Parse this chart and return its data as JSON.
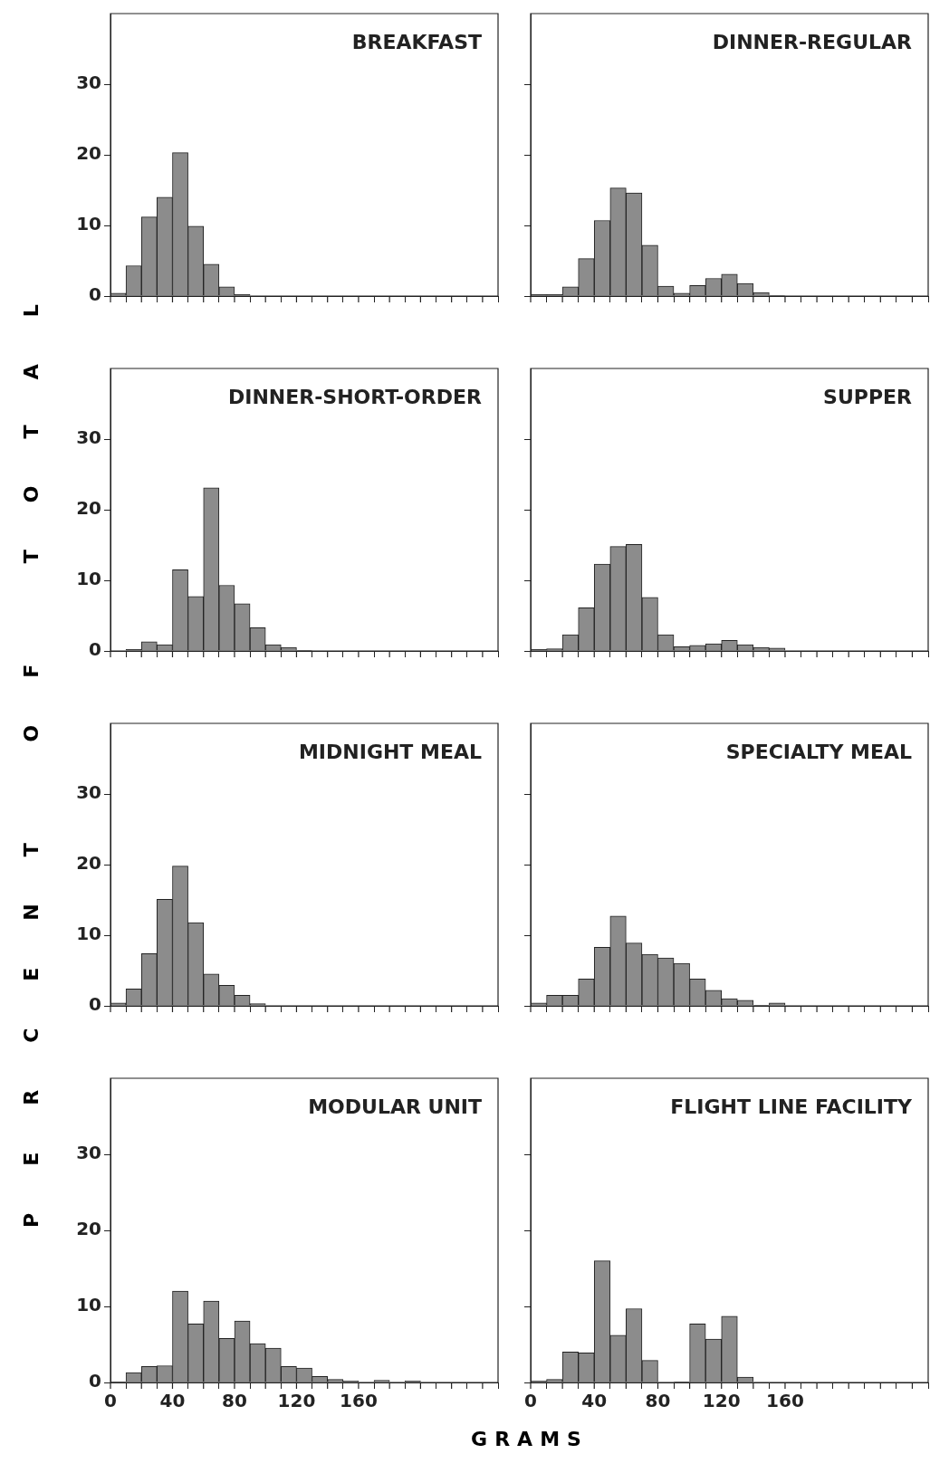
{
  "chart_data": [
    {
      "type": "histogram",
      "title": "BREAKFAST",
      "ylabel": "PERCENT OF TOTAL",
      "bins": [
        0,
        10,
        20,
        30,
        40,
        50,
        60,
        70,
        80,
        90,
        100,
        110,
        120,
        130,
        140,
        150,
        160,
        170,
        180,
        190,
        200,
        210,
        220,
        230,
        240,
        250
      ],
      "values": [
        0.4,
        4.3,
        11.2,
        14,
        20.3,
        9.9,
        4.5,
        1.3,
        0.2,
        0,
        0,
        0,
        0,
        0,
        0,
        0,
        0,
        0,
        0,
        0,
        0,
        0,
        0,
        0,
        0
      ],
      "color": "#8c8c8c",
      "xlim": [
        0,
        250
      ],
      "ylim": [
        0,
        40
      ],
      "yticks": [
        0,
        10,
        20,
        30
      ],
      "xticks": [
        {
          "value": 0,
          "label": null
        },
        {
          "value": 20,
          "label": null
        },
        {
          "value": 40,
          "label": null
        },
        {
          "value": 60,
          "label": null
        },
        {
          "value": 80,
          "label": null
        },
        {
          "value": 100,
          "label": null
        },
        {
          "value": 120,
          "label": null
        },
        {
          "value": 140,
          "label": null
        },
        {
          "value": 160,
          "label": null
        },
        {
          "value": 180,
          "label": null
        },
        {
          "value": 200,
          "label": null
        },
        {
          "value": 220,
          "label": null
        },
        {
          "value": 240,
          "label": null
        }
      ],
      "tick_labels": "y"
    },
    {
      "type": "histogram",
      "title": "DINNER-REGULAR",
      "bins": [
        0,
        10,
        20,
        30,
        40,
        50,
        60,
        70,
        80,
        90,
        100,
        110,
        120,
        130,
        140,
        150,
        160,
        170,
        180,
        190,
        200,
        210,
        220,
        230,
        240,
        250
      ],
      "values": [
        0.2,
        0.2,
        1.3,
        5.3,
        10.7,
        15.3,
        14.6,
        7.2,
        1.4,
        0.4,
        1.5,
        2.5,
        3.1,
        1.8,
        0.5,
        0.1,
        0,
        0,
        0,
        0,
        0,
        0,
        0,
        0,
        0
      ],
      "color": "#8c8c8c",
      "xlim": [
        0,
        250
      ],
      "ylim": [
        0,
        40
      ],
      "yticks": [
        0,
        10,
        20,
        30
      ],
      "xticks": [
        {
          "value": 0,
          "label": null
        },
        {
          "value": 20,
          "label": null
        },
        {
          "value": 40,
          "label": null
        },
        {
          "value": 60,
          "label": null
        },
        {
          "value": 80,
          "label": null
        },
        {
          "value": 100,
          "label": null
        },
        {
          "value": 120,
          "label": null
        },
        {
          "value": 140,
          "label": null
        },
        {
          "value": 160,
          "label": null
        },
        {
          "value": 180,
          "label": null
        },
        {
          "value": 200,
          "label": null
        },
        {
          "value": 220,
          "label": null
        },
        {
          "value": 240,
          "label": null
        }
      ],
      "tick_labels": false
    },
    {
      "type": "histogram",
      "title": "DINNER-SHORT-ORDER",
      "bins": [
        0,
        10,
        20,
        30,
        40,
        50,
        60,
        70,
        80,
        90,
        100,
        110,
        120,
        130,
        140,
        150,
        160,
        170,
        180,
        190,
        200,
        210,
        220,
        230,
        240,
        250
      ],
      "values": [
        0,
        0.2,
        1.3,
        0.9,
        11.5,
        7.7,
        23.1,
        9.3,
        6.7,
        3.3,
        0.9,
        0.5,
        0.1,
        0,
        0,
        0,
        0,
        0,
        0,
        0,
        0,
        0,
        0,
        0,
        0
      ],
      "color": "#8c8c8c",
      "xlim": [
        0,
        250
      ],
      "ylim": [
        0,
        40
      ],
      "yticks": [
        0,
        10,
        20,
        30
      ],
      "xticks": [
        {
          "value": 0,
          "label": null
        },
        {
          "value": 20,
          "label": null
        },
        {
          "value": 40,
          "label": null
        },
        {
          "value": 60,
          "label": null
        },
        {
          "value": 80,
          "label": null
        },
        {
          "value": 100,
          "label": null
        },
        {
          "value": 120,
          "label": null
        },
        {
          "value": 140,
          "label": null
        },
        {
          "value": 160,
          "label": null
        },
        {
          "value": 180,
          "label": null
        },
        {
          "value": 200,
          "label": null
        },
        {
          "value": 220,
          "label": null
        },
        {
          "value": 240,
          "label": null
        }
      ],
      "tick_labels": "y"
    },
    {
      "type": "histogram",
      "title": "SUPPER",
      "bins": [
        0,
        10,
        20,
        30,
        40,
        50,
        60,
        70,
        80,
        90,
        100,
        110,
        120,
        130,
        140,
        150,
        160,
        170,
        180,
        190,
        200,
        210,
        220,
        230,
        240,
        250
      ],
      "values": [
        0.2,
        0.3,
        2.3,
        6.1,
        12.3,
        14.8,
        15.1,
        7.6,
        2.3,
        0.6,
        0.8,
        1.0,
        1.5,
        0.9,
        0.5,
        0.4,
        0,
        0,
        0,
        0,
        0,
        0,
        0,
        0,
        0
      ],
      "color": "#8c8c8c",
      "xlim": [
        0,
        250
      ],
      "ylim": [
        0,
        40
      ],
      "yticks": [
        0,
        10,
        20,
        30
      ],
      "xticks": [
        {
          "value": 0,
          "label": null
        },
        {
          "value": 20,
          "label": null
        },
        {
          "value": 40,
          "label": null
        },
        {
          "value": 60,
          "label": null
        },
        {
          "value": 80,
          "label": null
        },
        {
          "value": 100,
          "label": null
        },
        {
          "value": 120,
          "label": null
        },
        {
          "value": 140,
          "label": null
        },
        {
          "value": 160,
          "label": null
        },
        {
          "value": 180,
          "label": null
        },
        {
          "value": 200,
          "label": null
        },
        {
          "value": 220,
          "label": null
        },
        {
          "value": 240,
          "label": null
        }
      ],
      "tick_labels": false
    },
    {
      "type": "histogram",
      "title": "MIDNIGHT MEAL",
      "bins": [
        0,
        10,
        20,
        30,
        40,
        50,
        60,
        70,
        80,
        90,
        100,
        110,
        120,
        130,
        140,
        150,
        160,
        170,
        180,
        190,
        200,
        210,
        220,
        230,
        240,
        250
      ],
      "values": [
        0.4,
        2.4,
        7.4,
        15.1,
        19.8,
        11.8,
        4.5,
        2.9,
        1.5,
        0.3,
        0,
        0,
        0,
        0,
        0,
        0,
        0,
        0,
        0,
        0,
        0,
        0,
        0,
        0,
        0
      ],
      "color": "#8c8c8c",
      "xlim": [
        0,
        250
      ],
      "ylim": [
        0,
        40
      ],
      "yticks": [
        0,
        10,
        20,
        30
      ],
      "xticks": [
        {
          "value": 0,
          "label": null
        },
        {
          "value": 20,
          "label": null
        },
        {
          "value": 40,
          "label": null
        },
        {
          "value": 60,
          "label": null
        },
        {
          "value": 80,
          "label": null
        },
        {
          "value": 100,
          "label": null
        },
        {
          "value": 120,
          "label": null
        },
        {
          "value": 140,
          "label": null
        },
        {
          "value": 160,
          "label": null
        },
        {
          "value": 180,
          "label": null
        },
        {
          "value": 200,
          "label": null
        },
        {
          "value": 220,
          "label": null
        },
        {
          "value": 240,
          "label": null
        }
      ],
      "tick_labels": "y"
    },
    {
      "type": "histogram",
      "title": "SPECIALTY MEAL",
      "bins": [
        0,
        10,
        20,
        30,
        40,
        50,
        60,
        70,
        80,
        90,
        100,
        110,
        120,
        130,
        140,
        150,
        160,
        170,
        180,
        190,
        200,
        210,
        220,
        230,
        240,
        250
      ],
      "values": [
        0.4,
        1.5,
        1.5,
        3.8,
        8.3,
        12.7,
        8.9,
        7.3,
        6.8,
        6.0,
        3.8,
        2.2,
        1.0,
        0.8,
        0.1,
        0.4,
        0,
        0,
        0,
        0,
        0,
        0,
        0,
        0,
        0
      ],
      "color": "#8c8c8c",
      "xlim": [
        0,
        250
      ],
      "ylim": [
        0,
        40
      ],
      "yticks": [
        0,
        10,
        20,
        30
      ],
      "xticks": [
        {
          "value": 0,
          "label": null
        },
        {
          "value": 20,
          "label": null
        },
        {
          "value": 40,
          "label": null
        },
        {
          "value": 60,
          "label": null
        },
        {
          "value": 80,
          "label": null
        },
        {
          "value": 100,
          "label": null
        },
        {
          "value": 120,
          "label": null
        },
        {
          "value": 140,
          "label": null
        },
        {
          "value": 160,
          "label": null
        },
        {
          "value": 180,
          "label": null
        },
        {
          "value": 200,
          "label": null
        },
        {
          "value": 220,
          "label": null
        },
        {
          "value": 240,
          "label": null
        }
      ],
      "tick_labels": false
    },
    {
      "type": "histogram",
      "title": "MODULAR UNIT",
      "xlabel": "GRAMS",
      "bins": [
        0,
        10,
        20,
        30,
        40,
        50,
        60,
        70,
        80,
        90,
        100,
        110,
        120,
        130,
        140,
        150,
        160,
        170,
        180,
        190,
        200,
        210,
        220,
        230,
        240,
        250
      ],
      "values": [
        0.1,
        1.3,
        2.1,
        2.2,
        12.0,
        7.7,
        10.7,
        5.8,
        8.1,
        5.1,
        4.5,
        2.1,
        1.9,
        0.8,
        0.4,
        0.2,
        0,
        0.3,
        0,
        0.2,
        0,
        0,
        0,
        0,
        0
      ],
      "color": "#8c8c8c",
      "xlim": [
        0,
        250
      ],
      "ylim": [
        0,
        40
      ],
      "yticks": [
        0,
        10,
        20,
        30
      ],
      "xticks": [
        {
          "value": 0,
          "label": "0"
        },
        {
          "value": 20,
          "label": null
        },
        {
          "value": 40,
          "label": "40"
        },
        {
          "value": 60,
          "label": null
        },
        {
          "value": 80,
          "label": "80"
        },
        {
          "value": 100,
          "label": null
        },
        {
          "value": 120,
          "label": "120"
        },
        {
          "value": 140,
          "label": null
        },
        {
          "value": 160,
          "label": "160"
        },
        {
          "value": 180,
          "label": null
        },
        {
          "value": 200,
          "label": null
        },
        {
          "value": 220,
          "label": null
        },
        {
          "value": 240,
          "label": null
        }
      ]
    },
    {
      "type": "histogram",
      "title": "FLIGHT LINE FACILITY",
      "bins": [
        0,
        10,
        20,
        30,
        40,
        50,
        60,
        70,
        80,
        90,
        100,
        110,
        120,
        130,
        140,
        150,
        160,
        170,
        180,
        190,
        200,
        210,
        220,
        230,
        240,
        250
      ],
      "values": [
        0.2,
        0.4,
        4.0,
        3.9,
        16.0,
        6.2,
        9.7,
        2.9,
        0,
        0.1,
        7.7,
        5.7,
        8.7,
        0.7,
        0,
        0,
        0,
        0,
        0,
        0,
        0,
        0,
        0,
        0,
        0
      ],
      "color": "#8c8c8c",
      "xlim": [
        0,
        250
      ],
      "ylim": [
        0,
        40
      ],
      "yticks": [
        0,
        10,
        20,
        30
      ],
      "xticks": [
        {
          "value": 0,
          "label": "0"
        },
        {
          "value": 20,
          "label": null
        },
        {
          "value": 40,
          "label": "40"
        },
        {
          "value": 60,
          "label": null
        },
        {
          "value": 80,
          "label": "80"
        },
        {
          "value": 100,
          "label": null
        },
        {
          "value": 120,
          "label": "120"
        },
        {
          "value": 140,
          "label": null
        },
        {
          "value": 160,
          "label": "160"
        },
        {
          "value": 180,
          "label": null
        },
        {
          "value": 200,
          "label": null
        },
        {
          "value": 220,
          "label": null
        },
        {
          "value": 240,
          "label": null
        }
      ],
      "tick_labels": "x"
    }
  ]
}
